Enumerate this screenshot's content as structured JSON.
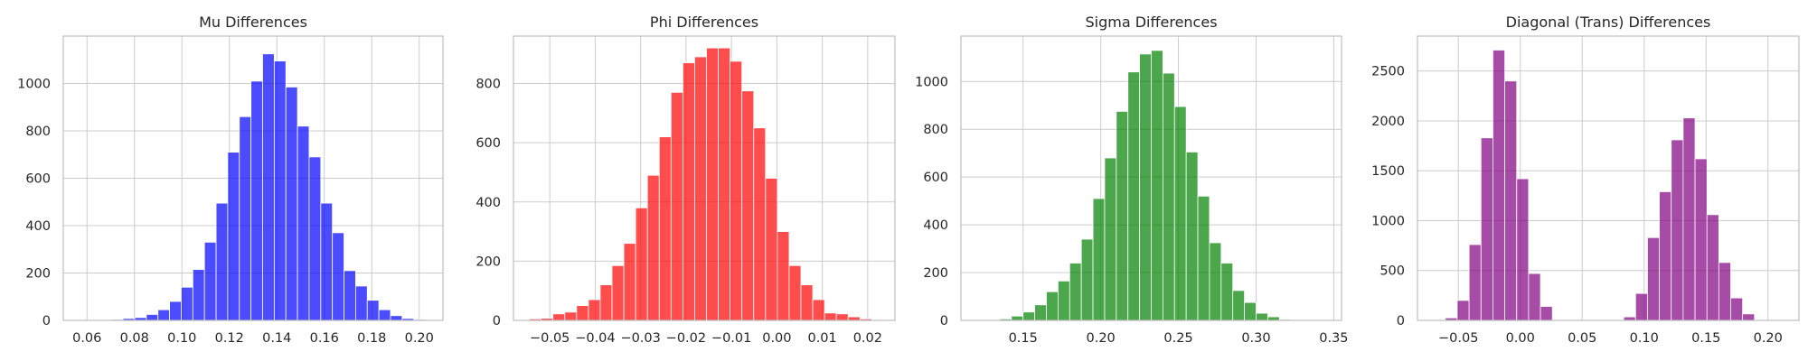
{
  "chart_data": [
    {
      "type": "bar",
      "kind": "histogram",
      "title": "Mu Differences",
      "color": "#0000ff",
      "xlim": [
        0.05,
        0.21
      ],
      "ylim": [
        0,
        1200
      ],
      "xticks": [
        0.06,
        0.08,
        0.1,
        0.12,
        0.14,
        0.16,
        0.18,
        0.2
      ],
      "xtick_labels": [
        "0.06",
        "0.08",
        "0.10",
        "0.12",
        "0.14",
        "0.16",
        "0.18",
        "0.20"
      ],
      "yticks": [
        0,
        200,
        400,
        600,
        800,
        1000
      ],
      "ytick_labels": [
        "0",
        "200",
        "400",
        "600",
        "800",
        "1000"
      ],
      "bin_start": 0.0605,
      "bin_width": 0.0049,
      "values": [
        1,
        2,
        4,
        8,
        12,
        25,
        45,
        80,
        140,
        215,
        330,
        495,
        710,
        860,
        1010,
        1125,
        1095,
        985,
        820,
        690,
        495,
        370,
        210,
        145,
        85,
        45,
        20,
        8,
        4,
        1
      ]
    },
    {
      "type": "bar",
      "kind": "histogram",
      "title": "Phi Differences",
      "color": "#ff0000",
      "xlim": [
        -0.058,
        0.026
      ],
      "ylim": [
        0,
        960
      ],
      "xticks": [
        -0.05,
        -0.04,
        -0.03,
        -0.02,
        -0.01,
        0.0,
        0.01,
        0.02
      ],
      "xtick_labels": [
        "−0.05",
        "−0.04",
        "−0.03",
        "−0.02",
        "−0.01",
        "0.00",
        "0.01",
        "0.02"
      ],
      "yticks": [
        0,
        200,
        400,
        600,
        800
      ],
      "ytick_labels": [
        "0",
        "200",
        "400",
        "600",
        "800"
      ],
      "bin_start": -0.0545,
      "bin_width": 0.0026,
      "values": [
        5,
        7,
        22,
        28,
        50,
        70,
        120,
        185,
        260,
        380,
        490,
        620,
        770,
        870,
        890,
        920,
        920,
        875,
        775,
        650,
        480,
        300,
        185,
        120,
        70,
        25,
        22,
        12,
        5
      ]
    },
    {
      "type": "bar",
      "kind": "histogram",
      "title": "Sigma Differences",
      "color": "#008000",
      "xlim": [
        0.11,
        0.355
      ],
      "ylim": [
        0,
        1190
      ],
      "xticks": [
        0.15,
        0.2,
        0.25,
        0.3,
        0.35
      ],
      "xtick_labels": [
        "0.15",
        "0.20",
        "0.25",
        "0.30",
        "0.35"
      ],
      "yticks": [
        0,
        200,
        400,
        600,
        800,
        1000
      ],
      "ytick_labels": [
        "0",
        "200",
        "400",
        "600",
        "800",
        "1000"
      ],
      "bin_start": 0.12,
      "bin_width": 0.0075,
      "values": [
        1,
        2,
        6,
        18,
        35,
        65,
        120,
        165,
        240,
        340,
        510,
        680,
        875,
        1040,
        1115,
        1130,
        1035,
        895,
        705,
        520,
        325,
        240,
        125,
        75,
        30,
        15,
        4,
        2,
        1,
        1,
        0,
        0
      ]
    },
    {
      "type": "bar",
      "kind": "histogram",
      "title": "Diagonal (Trans) Differences",
      "color": "#800080",
      "xlim": [
        -0.083,
        0.225
      ],
      "ylim": [
        0,
        2850
      ],
      "xticks": [
        -0.05,
        0.0,
        0.05,
        0.1,
        0.15,
        0.2
      ],
      "xtick_labels": [
        "−0.05",
        "0.00",
        "0.05",
        "0.10",
        "0.15",
        "0.20"
      ],
      "yticks": [
        0,
        500,
        1000,
        1500,
        2000,
        2500
      ],
      "ytick_labels": [
        "0",
        "500",
        "1000",
        "1500",
        "2000",
        "2500"
      ],
      "bin_start": -0.0605,
      "bin_width": 0.0096,
      "values": [
        25,
        200,
        760,
        1830,
        2710,
        2400,
        1420,
        470,
        140,
        8,
        3,
        1,
        1,
        1,
        1,
        35,
        270,
        830,
        1290,
        1810,
        2030,
        1620,
        1060,
        580,
        225,
        65,
        5
      ]
    }
  ]
}
